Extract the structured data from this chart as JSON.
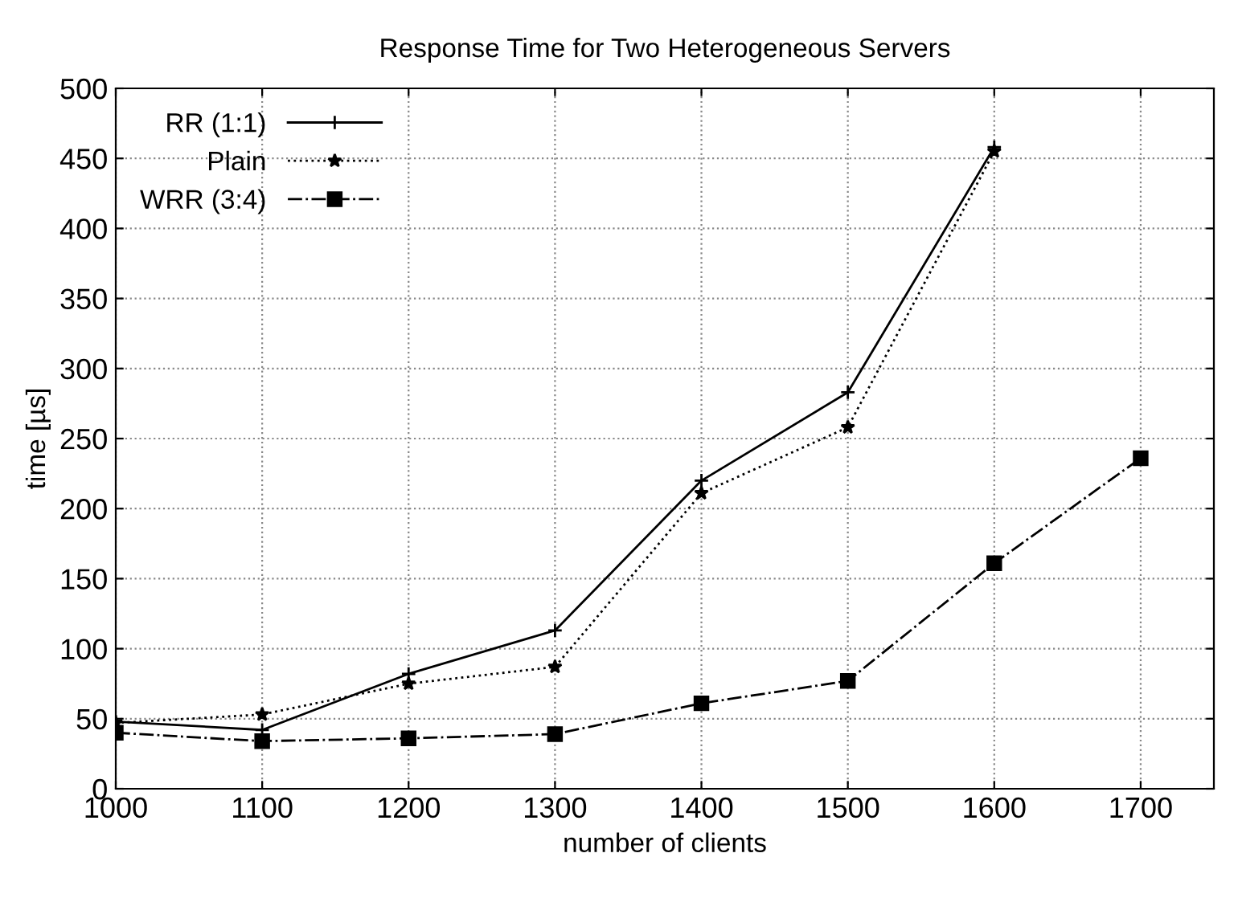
{
  "chart_data": {
    "type": "line",
    "title": "Response Time for Two Heterogeneous Servers",
    "xlabel": "number of clients",
    "ylabel": "time [µs]",
    "xlim": [
      1000,
      1750
    ],
    "xticks": [
      1000,
      1100,
      1200,
      1300,
      1400,
      1500,
      1600,
      1700
    ],
    "ylim": [
      0,
      500
    ],
    "yticks": [
      0,
      50,
      100,
      150,
      200,
      250,
      300,
      350,
      400,
      450,
      500
    ],
    "grid": true,
    "legend": "top left",
    "series": [
      {
        "name": "RR (1:1)",
        "color": "#000000",
        "marker": "cross",
        "line_style": "solid",
        "x": [
          1000,
          1100,
          1200,
          1300,
          1400,
          1500,
          1600
        ],
        "values": [
          48,
          42,
          82,
          113,
          220,
          283,
          458
        ]
      },
      {
        "name": "Plain",
        "color": "#000000",
        "marker": "star",
        "line_style": "dotted",
        "x": [
          1000,
          1100,
          1200,
          1300,
          1400,
          1500,
          1600
        ],
        "values": [
          47,
          53,
          75,
          87,
          211,
          258,
          455
        ]
      },
      {
        "name": "WRR (3:4)",
        "color": "#000000",
        "marker": "square",
        "line_style": "dashdot",
        "x": [
          1000,
          1100,
          1200,
          1300,
          1400,
          1500,
          1600,
          1700
        ],
        "values": [
          40,
          34,
          36,
          39,
          61,
          77,
          161,
          236
        ]
      }
    ]
  }
}
